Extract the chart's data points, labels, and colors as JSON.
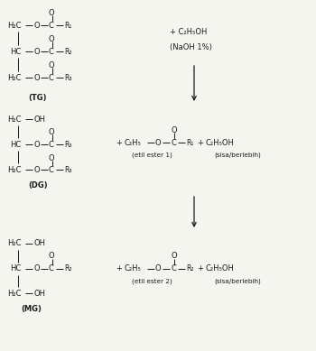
{
  "bg_color": "#f5f5f0",
  "fig_width": 3.5,
  "fig_height": 3.89,
  "dpi": 100,
  "tg_label": "(TG)",
  "dg_label": "(DG)",
  "mg_label": "(MG)",
  "reagent1": "+ C₂H₅OH",
  "reagent1b": "(NaOH 1%)",
  "product1_ester": "(etil ester 1)",
  "product1_excess": "(sisa/berlebih)",
  "product2_ester": "(etil ester 2)",
  "product2_excess": "(sisa/berlebih)"
}
